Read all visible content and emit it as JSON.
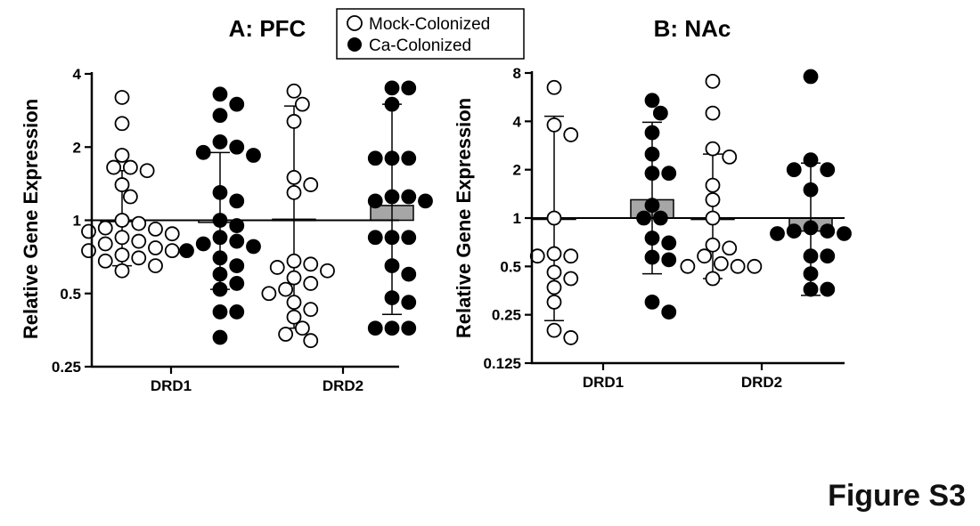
{
  "figure_label": "Figure S3",
  "legend": [
    {
      "label": "Mock-Colonized",
      "style": "open"
    },
    {
      "label": "Ca-Colonized",
      "style": "filled"
    }
  ],
  "colors": {
    "bar": "#a6a6a6",
    "axis": "#000000",
    "filled_point": "#000000",
    "open_point": "#ffffff"
  },
  "chart_data": [
    {
      "type": "scatter",
      "title": "A: PFC",
      "ylabel": "Relative Gene Expression",
      "yscale": "log2",
      "ylim": [
        0.25,
        4
      ],
      "yticks": [
        0.25,
        0.5,
        1,
        2,
        4
      ],
      "ytick_labels": [
        "0.25",
        "0.5",
        "1",
        "2",
        "4"
      ],
      "reference_line": 1,
      "categories": [
        "DRD1",
        "DRD2"
      ],
      "groups": [
        {
          "category": "DRD1",
          "series": "Mock-Colonized",
          "mean": 1.0,
          "err_low": 0.65,
          "err_high": 1.6,
          "points": [
            3.2,
            2.5,
            1.85,
            1.65,
            1.65,
            1.6,
            1.4,
            1.25,
            1.0,
            0.97,
            0.93,
            0.92,
            0.9,
            0.88,
            0.85,
            0.82,
            0.8,
            0.77,
            0.75,
            0.75,
            0.72,
            0.7,
            0.68,
            0.65,
            0.62
          ]
        },
        {
          "category": "DRD1",
          "series": "Ca-Colonized",
          "mean": 0.98,
          "err_low": 0.52,
          "err_high": 1.9,
          "points": [
            3.3,
            3.0,
            2.7,
            2.1,
            2.0,
            1.9,
            1.85,
            1.3,
            1.2,
            1.0,
            0.95,
            0.85,
            0.82,
            0.8,
            0.78,
            0.75,
            0.7,
            0.65,
            0.6,
            0.55,
            0.52,
            0.42,
            0.42,
            0.33
          ]
        },
        {
          "category": "DRD2",
          "series": "Mock-Colonized",
          "mean": 1.01,
          "err_low": 0.36,
          "err_high": 2.95,
          "points": [
            3.4,
            3.0,
            2.55,
            1.5,
            1.4,
            1.3,
            0.68,
            0.66,
            0.64,
            0.62,
            0.58,
            0.55,
            0.52,
            0.5,
            0.46,
            0.43,
            0.4,
            0.36,
            0.34,
            0.32
          ]
        },
        {
          "category": "DRD2",
          "series": "Ca-Colonized",
          "mean": 1.15,
          "err_low": 0.41,
          "err_high": 3.0,
          "points": [
            3.5,
            3.5,
            3.0,
            1.8,
            1.8,
            1.8,
            1.25,
            1.25,
            1.2,
            1.2,
            0.85,
            0.85,
            0.85,
            0.65,
            0.6,
            0.48,
            0.46,
            0.36,
            0.36,
            0.36
          ]
        }
      ]
    },
    {
      "type": "scatter",
      "title": "B: NAc",
      "ylabel": "Relative Gene Expression",
      "yscale": "log2",
      "ylim": [
        0.125,
        8
      ],
      "yticks": [
        0.125,
        0.25,
        0.5,
        1,
        2,
        4,
        8
      ],
      "ytick_labels": [
        "0.125",
        "0.25",
        "0.5",
        "1",
        "2",
        "4",
        "8"
      ],
      "reference_line": 1,
      "categories": [
        "DRD1",
        "DRD2"
      ],
      "groups": [
        {
          "category": "DRD1",
          "series": "Mock-Colonized",
          "mean": 1.0,
          "err_low": 0.23,
          "err_high": 4.3,
          "points": [
            6.5,
            3.8,
            3.3,
            1.0,
            0.6,
            0.58,
            0.58,
            0.46,
            0.42,
            0.37,
            0.3,
            0.2,
            0.18
          ]
        },
        {
          "category": "DRD1",
          "series": "Ca-Colonized",
          "mean": 1.3,
          "err_low": 0.45,
          "err_high": 3.95,
          "points": [
            5.4,
            4.5,
            3.4,
            2.5,
            1.9,
            1.9,
            1.2,
            1.0,
            1.0,
            0.75,
            0.7,
            0.57,
            0.55,
            0.3,
            0.26
          ]
        },
        {
          "category": "DRD2",
          "series": "Mock-Colonized",
          "mean": 0.98,
          "err_low": 0.42,
          "err_high": 2.5,
          "points": [
            7.1,
            4.5,
            2.7,
            2.4,
            1.6,
            1.3,
            1.0,
            0.68,
            0.65,
            0.58,
            0.52,
            0.5,
            0.5,
            0.5,
            0.42
          ]
        },
        {
          "category": "DRD2",
          "series": "Ca-Colonized",
          "mean": 0.83,
          "err_low": 0.33,
          "err_high": 2.2,
          "points": [
            7.6,
            2.3,
            2.0,
            2.0,
            1.5,
            0.87,
            0.83,
            0.83,
            0.8,
            0.8,
            0.58,
            0.58,
            0.45,
            0.36,
            0.36
          ]
        }
      ]
    }
  ]
}
